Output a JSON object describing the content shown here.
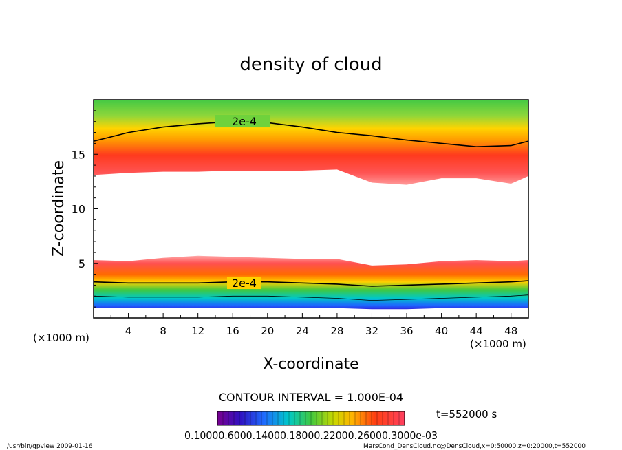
{
  "chart_data": {
    "type": "heatmap",
    "title": "density of cloud",
    "xlabel": "X-coordinate",
    "ylabel": "Z-coordinate",
    "xlim": [
      0,
      50
    ],
    "ylim": [
      0,
      20
    ],
    "x_ticks": [
      "4",
      "8",
      "12",
      "16",
      "20",
      "24",
      "28",
      "32",
      "36",
      "40",
      "44",
      "48"
    ],
    "y_ticks": [
      "5",
      "10",
      "15"
    ],
    "x_unit_left": "(×1000 m)",
    "x_unit_right": "(×1000 m)",
    "contour_labels": [
      "2e-4",
      "2e-4"
    ],
    "contour_interval": "CONTOUR INTERVAL = 1.000E-04",
    "time_label": "t=552000 s",
    "colorbar_labels": "0.10000.6000.14000.18000.22000.26000.3000e-03",
    "upper_layer": {
      "x": [
        0,
        4,
        8,
        12,
        16,
        20,
        24,
        28,
        32,
        36,
        40,
        44,
        48,
        50
      ],
      "top": [
        20,
        20,
        20,
        20,
        20,
        20,
        20,
        20,
        20,
        20,
        20,
        20,
        20,
        20
      ],
      "contour_2e4": [
        16.2,
        17.0,
        17.5,
        17.8,
        18.0,
        17.9,
        17.5,
        17.0,
        16.7,
        16.3,
        16.0,
        15.7,
        15.8,
        16.2
      ],
      "bottom": [
        13.1,
        13.3,
        13.4,
        13.4,
        13.5,
        13.5,
        13.5,
        13.6,
        12.4,
        12.2,
        12.8,
        12.8,
        12.3,
        13.0
      ]
    },
    "lower_layer": {
      "x": [
        0,
        4,
        8,
        12,
        16,
        20,
        24,
        28,
        32,
        36,
        40,
        44,
        48,
        50
      ],
      "top": [
        5.3,
        5.2,
        5.5,
        5.7,
        5.6,
        5.5,
        5.4,
        5.4,
        4.8,
        4.9,
        5.2,
        5.3,
        5.2,
        5.3
      ],
      "contour_2e4": [
        3.3,
        3.2,
        3.2,
        3.2,
        3.3,
        3.3,
        3.2,
        3.1,
        2.9,
        3.0,
        3.1,
        3.2,
        3.3,
        3.4
      ],
      "bottom": [
        0.9,
        0.9,
        0.9,
        0.9,
        0.9,
        0.9,
        0.9,
        0.9,
        0.8,
        0.8,
        0.9,
        0.9,
        0.9,
        0.9
      ]
    }
  },
  "footer": {
    "left": "/usr/bin/gpview   2009-01-16",
    "right": "MarsCond_DensCloud.nc@DensCloud,x=0:50000,z=0:20000,t=552000"
  }
}
